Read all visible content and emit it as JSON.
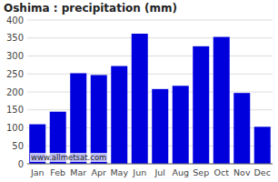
{
  "chart_data": {
    "type": "bar",
    "title": "Oshima : precipitation (mm)",
    "categories": [
      "Jan",
      "Feb",
      "Mar",
      "Apr",
      "May",
      "Jun",
      "Jul",
      "Aug",
      "Sep",
      "Oct",
      "Nov",
      "Dec"
    ],
    "values": [
      110,
      145,
      252,
      247,
      272,
      362,
      208,
      217,
      327,
      353,
      197,
      103
    ],
    "color": "#0000dd",
    "ylim": [
      0,
      400
    ],
    "yticks": [
      0,
      50,
      100,
      150,
      200,
      250,
      300,
      350,
      400
    ],
    "grid": true,
    "annotations": [
      "www.allmetsat.com"
    ]
  }
}
